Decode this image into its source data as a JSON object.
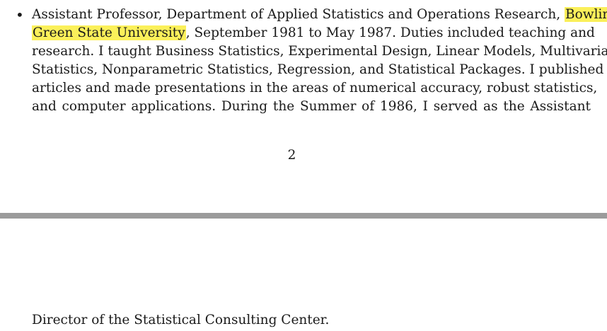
{
  "document": {
    "bullet": "•",
    "paragraph_lines": [
      {
        "before": "Assistant Professor, Department of Applied Statistics and Operations Research, ",
        "highlight": "Bowling",
        "after": ""
      },
      {
        "before": "",
        "highlight": "Green State University",
        "after": ", September 1981 to May 1987. Duties included teaching and"
      },
      {
        "before": "research. I taught Business Statistics, Experimental Design, Linear Models, Multivariate",
        "highlight": "",
        "after": ""
      },
      {
        "before": "Statistics, Nonparametric Statistics, Regression, and Statistical Packages. I published",
        "highlight": "",
        "after": ""
      },
      {
        "before": "articles and made presentations in the areas of numerical accuracy, robust statistics,",
        "highlight": "",
        "after": ""
      },
      {
        "before": "and computer applications. During the Summer of 1986, I served as the Assistant",
        "highlight": "",
        "after": ""
      }
    ],
    "page_number": "2",
    "continuation_text": "Director of the Statistical Consulting Center.",
    "highlight_color": "#fbf05a",
    "divider_color": "#9b9b9b"
  }
}
